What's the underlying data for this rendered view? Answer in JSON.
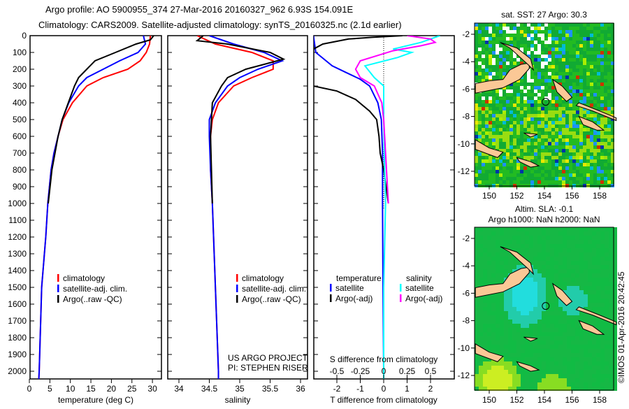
{
  "title_line1": "Argo profile: AO 5900955_374 27-Mar-2016 20160327_962 6.93S 154.091E",
  "title_line2": "Climatology: CARS2009. Satellite-adjusted climatology: synTS_20160325.nc (2.1d earlier)",
  "credit": "©IMOS 01-Apr-2016 20:42:45",
  "project_line1": "US ARGO PROJECT",
  "project_line2": "PI: STEPHEN RISER",
  "colors": {
    "climatology": "#ff0000",
    "satellite_t": "#0000ff",
    "argo_t": "#000000",
    "satellite_s": "#00ffff",
    "argo_s": "#ff00ff"
  },
  "chart_data": [
    {
      "type": "line",
      "name": "temperature",
      "xlabel": "temperature (deg C)",
      "ylabel": "",
      "xlim": [
        -2,
        32
      ],
      "ylim": [
        2050,
        0
      ],
      "xticks": [
        "0",
        "5",
        "10",
        "15",
        "20",
        "25",
        "30"
      ],
      "yticks": [
        "0",
        "100",
        "200",
        "300",
        "400",
        "500",
        "600",
        "700",
        "800",
        "900",
        "1000",
        "1100",
        "1200",
        "1300",
        "1400",
        "1500",
        "1600",
        "1700",
        "1800",
        "1900",
        "2000"
      ],
      "legend": [
        "climatology",
        "satellite-adj. clim.",
        "Argo(..raw -QC)"
      ],
      "series": [
        {
          "name": "climatology",
          "color": "#ff0000",
          "depth": [
            0,
            50,
            100,
            150,
            200,
            250,
            300,
            400,
            500,
            600,
            700,
            800,
            1000,
            1200,
            1500,
            2000,
            2050
          ],
          "values": [
            29.5,
            29.3,
            28.5,
            27,
            24,
            18,
            14,
            10.5,
            8.2,
            7,
            6,
            5.3,
            4.5,
            4,
            3,
            2.4,
            2.3
          ]
        },
        {
          "name": "satellite-adj. clim.",
          "color": "#0000ff",
          "depth": [
            0,
            50,
            100,
            150,
            200,
            250,
            300,
            400,
            500,
            600,
            700,
            800,
            1000,
            1200,
            1500,
            2000,
            2050
          ],
          "values": [
            27.8,
            28.3,
            26.5,
            22,
            18,
            14,
            12,
            9.6,
            8,
            7,
            6,
            5.3,
            4.5,
            4,
            3,
            2.4,
            2.3
          ]
        },
        {
          "name": "Argo(..raw -QC)",
          "color": "#000000",
          "depth": [
            0,
            25,
            50,
            100,
            150,
            200,
            250,
            300,
            400,
            500,
            600,
            800,
            1000
          ],
          "values": [
            30.3,
            29.5,
            26,
            21,
            16,
            14,
            12,
            11,
            9.5,
            8,
            7,
            5.5,
            4.6
          ]
        }
      ]
    },
    {
      "type": "line",
      "name": "salinity",
      "xlabel": "salinity",
      "xlim": [
        33.8,
        36.15
      ],
      "ylim": [
        2050,
        0
      ],
      "xticks": [
        "34",
        "34.5",
        "35",
        "35.5",
        "36"
      ],
      "legend": [
        "climatology",
        "satellite-adj. clim.",
        "Argo(..raw -QC)"
      ],
      "series": [
        {
          "name": "climatology",
          "color": "#ff0000",
          "depth": [
            0,
            50,
            100,
            150,
            200,
            250,
            300,
            400,
            500,
            600,
            800,
            1000,
            1500,
            2000,
            2050
          ],
          "values": [
            34.3,
            34.6,
            35.2,
            35.55,
            35.55,
            35.2,
            34.9,
            34.65,
            34.55,
            34.52,
            34.52,
            34.55,
            34.6,
            34.65,
            34.65
          ]
        },
        {
          "name": "satellite-adj. clim.",
          "color": "#0000ff",
          "depth": [
            0,
            50,
            100,
            150,
            200,
            250,
            300,
            400,
            500,
            600,
            800,
            1000,
            1500,
            2000,
            2050
          ],
          "values": [
            34.5,
            34.9,
            35.4,
            35.7,
            35.3,
            35,
            34.8,
            34.6,
            34.5,
            34.5,
            34.52,
            34.55,
            34.6,
            34.65,
            34.65
          ]
        },
        {
          "name": "Argo(..raw -QC)",
          "color": "#000000",
          "depth": [
            0,
            30,
            50,
            100,
            140,
            200,
            250,
            300,
            400,
            600,
            1000
          ],
          "values": [
            34.4,
            34.3,
            34.8,
            35.5,
            35.72,
            35.1,
            34.8,
            34.7,
            34.55,
            34.52,
            34.55
          ]
        }
      ]
    },
    {
      "type": "line",
      "name": "difference from climatology",
      "xlabel": "T difference from climatology",
      "xlabel_top": "S difference from climatology",
      "xlim": [
        -3,
        3
      ],
      "ylim": [
        2050,
        0
      ],
      "xticks": [
        "-2",
        "-1",
        "0",
        "1",
        "2"
      ],
      "xticks_top": [
        "-0.5",
        "-0.25",
        "0",
        "0.25",
        "0.5"
      ],
      "legend_headers": [
        "temperature",
        "salinity"
      ],
      "legend": [
        "satellite",
        "Argo(-adj)",
        "satellite",
        "Argo(-adj)"
      ],
      "series": [
        {
          "name": "T satellite",
          "var": "T",
          "color": "#0000ff",
          "depth": [
            0,
            100,
            180,
            220,
            260,
            300,
            400,
            500,
            700,
            1000,
            1500,
            2000,
            2050
          ],
          "values": [
            -3,
            -2.9,
            -2.2,
            -1.6,
            -1.0,
            -0.6,
            -0.25,
            -0.1,
            -0.05,
            -0.05,
            -0.03,
            0,
            0
          ]
        },
        {
          "name": "T Argo(-adj)",
          "var": "T",
          "color": "#000000",
          "depth": [
            0,
            10,
            20,
            50,
            80,
            300,
            330,
            380,
            450,
            500,
            600,
            700,
            800,
            900,
            1000
          ],
          "values": [
            0.8,
            -0.5,
            -1.5,
            -2.6,
            -3,
            -3,
            -2,
            -1.2,
            -0.6,
            -0.3,
            -0.2,
            -0.15,
            0,
            0.1,
            0.2
          ]
        },
        {
          "name": "S satellite",
          "var": "S",
          "color": "#00ffff",
          "depth": [
            0,
            40,
            80,
            100,
            130,
            180,
            250,
            300,
            500,
            800,
            1000,
            1500,
            2000,
            2050
          ],
          "values": [
            0.6,
            0.4,
            0.1,
            0.3,
            0.15,
            -0.2,
            -0.1,
            0,
            0,
            0.01,
            0.02,
            0,
            0,
            0
          ]
        },
        {
          "name": "S Argo(-adj)",
          "var": "S",
          "color": "#ff00ff",
          "depth": [
            0,
            20,
            40,
            60,
            90,
            150,
            200,
            250,
            300,
            400,
            500,
            700,
            1000
          ],
          "values": [
            0.25,
            0.5,
            0.55,
            0.4,
            0.1,
            -0.25,
            -0.3,
            -0.25,
            -0.1,
            -0.02,
            0,
            0.02,
            0.05
          ]
        }
      ]
    },
    {
      "type": "heatmap",
      "name": "sst-map",
      "title": "sat. SST: 27 Argo: 30.3",
      "xlim": [
        149,
        159.2
      ],
      "ylim": [
        -12.9,
        -1
      ],
      "xticks": [
        "150",
        "152",
        "154",
        "156",
        "158"
      ],
      "yticks": [
        "-2",
        "-4",
        "-6",
        "-8",
        "-10",
        "-12"
      ],
      "marker": {
        "lon": 154.091,
        "lat": -6.93
      }
    },
    {
      "type": "heatmap",
      "name": "sla-map",
      "title_line1": "Altim. SLA: -0.1",
      "title_line2": "Argo h1000: NaN h2000: NaN",
      "xlim": [
        149,
        159.2
      ],
      "ylim": [
        -12.9,
        -1
      ],
      "xticks": [
        "150",
        "152",
        "154",
        "156",
        "158"
      ],
      "yticks": [
        "-2",
        "-4",
        "-6",
        "-8",
        "-10",
        "-12"
      ],
      "marker": {
        "lon": 154.091,
        "lat": -6.93
      }
    }
  ]
}
